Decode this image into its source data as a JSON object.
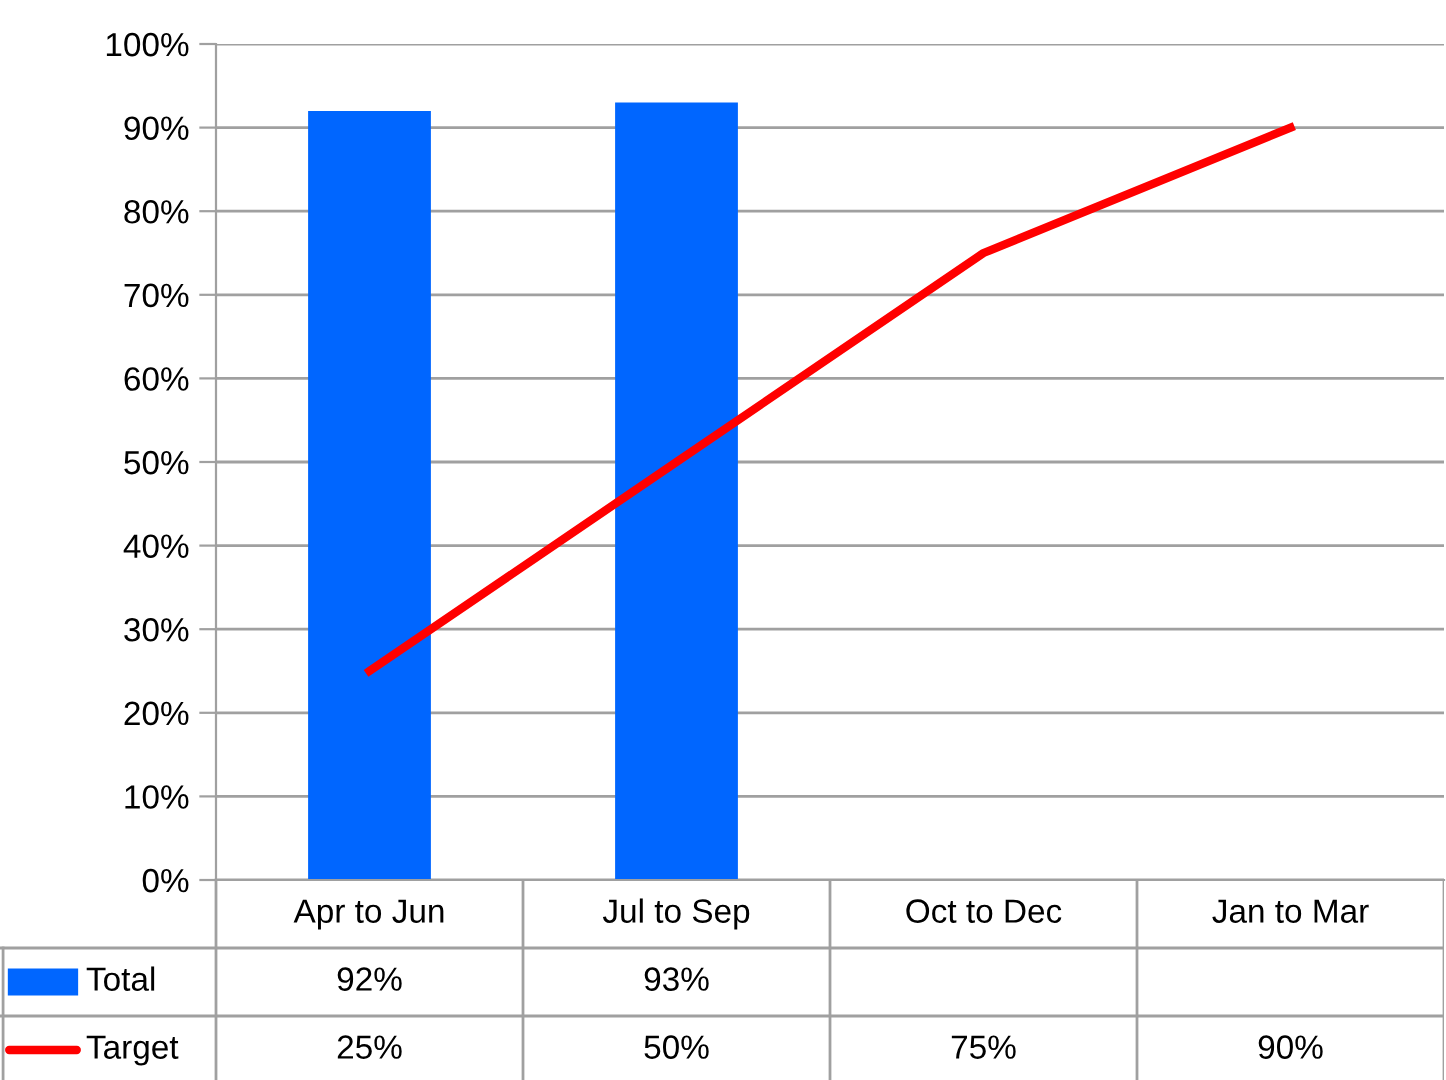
{
  "chart_data": {
    "type": "bar",
    "categories": [
      "Apr to Jun",
      "Jul to Sep",
      "Oct to Dec",
      "Jan to Mar"
    ],
    "series": [
      {
        "name": "Total",
        "color": "#0066ff",
        "values": [
          92,
          93,
          null,
          null
        ],
        "value_labels": [
          "92%",
          "93%",
          null,
          null
        ]
      },
      {
        "name": "Target",
        "type": "line",
        "color": "#ff0000",
        "values": [
          25,
          50,
          75,
          90
        ],
        "value_labels": [
          "25%",
          "50%",
          "75%",
          "90%"
        ]
      }
    ],
    "ylim": [
      0,
      100
    ],
    "yticks": [
      {
        "value": 0,
        "label": "0%"
      },
      {
        "value": 10,
        "label": "10%"
      },
      {
        "value": 20,
        "label": "20%"
      },
      {
        "value": 30,
        "label": "30%"
      },
      {
        "value": 40,
        "label": "40%"
      },
      {
        "value": 50,
        "label": "50%"
      },
      {
        "value": 60,
        "label": "60%"
      },
      {
        "value": 70,
        "label": "70%"
      },
      {
        "value": 80,
        "label": "80%"
      },
      {
        "value": 90,
        "label": "90%"
      },
      {
        "value": 100,
        "label": "100%"
      }
    ],
    "grid": "y",
    "legend": "bottom left",
    "marker": "none",
    "line_style": "solid"
  }
}
